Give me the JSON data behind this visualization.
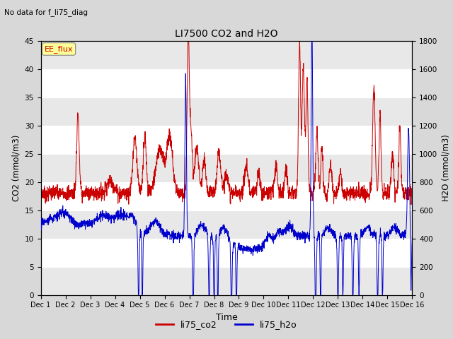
{
  "title": "LI7500 CO2 and H2O",
  "subtitle": "No data for f_li75_diag",
  "xlabel": "Time",
  "ylabel_left": "CO2 (mmol/m3)",
  "ylabel_right": "H2O (mmol/m3)",
  "ylim_left": [
    0,
    45
  ],
  "ylim_right": [
    0,
    1800
  ],
  "yticks_left": [
    0,
    5,
    10,
    15,
    20,
    25,
    30,
    35,
    40,
    45
  ],
  "yticks_right": [
    0,
    200,
    400,
    600,
    800,
    1000,
    1200,
    1400,
    1600,
    1800
  ],
  "xticklabels": [
    "Dec 1",
    "Dec 2",
    "Dec 3",
    "Dec 4",
    "Dec 5",
    "Dec 6",
    "Dec 7",
    "Dec 8",
    "Dec 9",
    "Dec 10",
    "Dec 11",
    "Dec 12",
    "Dec 13",
    "Dec 14",
    "Dec 15",
    "Dec 16"
  ],
  "legend_label_co2": "li75_co2",
  "legend_label_h2o": "li75_h2o",
  "annotation_label": "EE_flux",
  "co2_color": "#cc0000",
  "h2o_color": "#0000cc",
  "bg_color": "#d8d8d8",
  "plot_bg_color": "#ffffff",
  "band_color": "#e8e8e8",
  "annotation_box_color": "#ffff99",
  "annotation_box_edge": "#888888",
  "figwidth": 6.4,
  "figheight": 4.8,
  "dpi": 100
}
